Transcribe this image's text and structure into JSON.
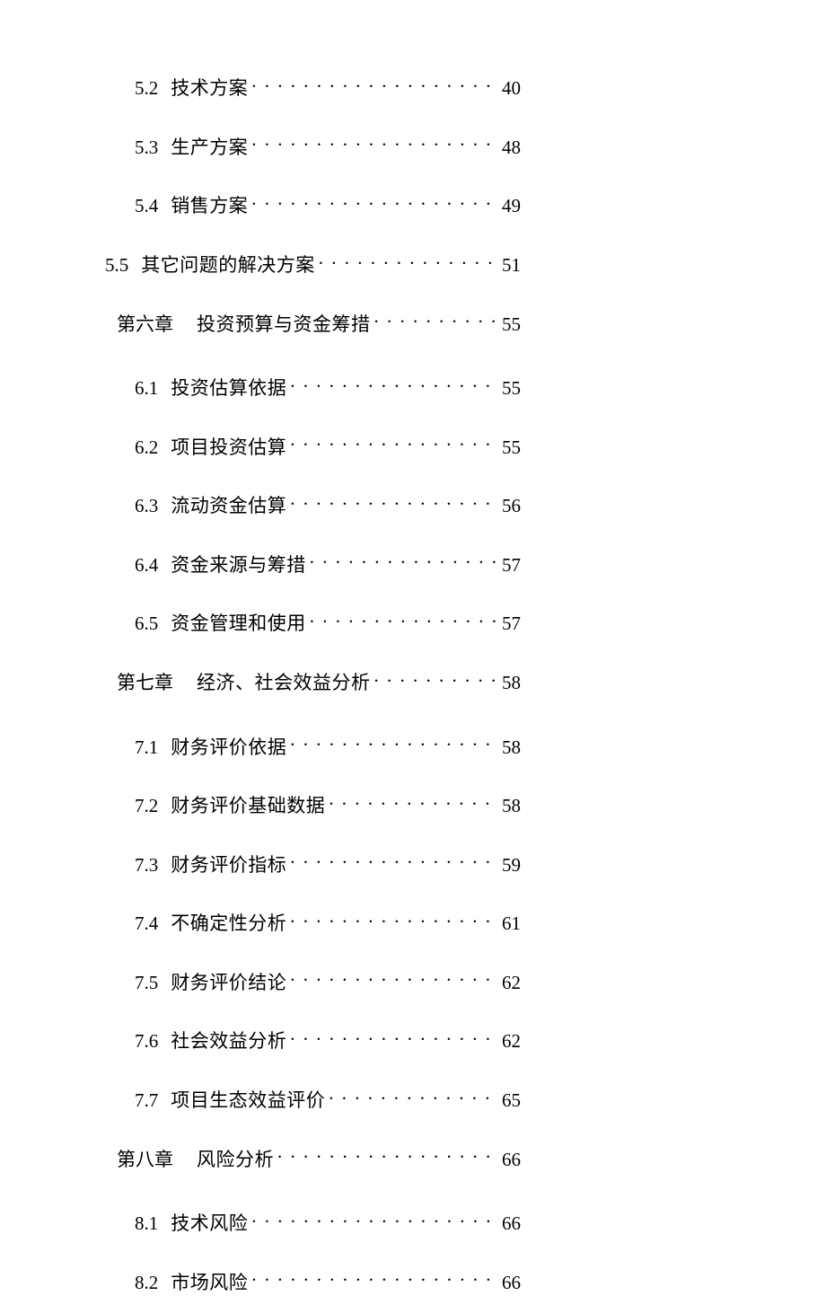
{
  "text_color": "#000000",
  "background_color": "#ffffff",
  "font_family": "SimSun",
  "font_size_pt": 16,
  "entries": [
    {
      "kind": "sub",
      "num": "5.2",
      "title": "技术方案",
      "page": "40"
    },
    {
      "kind": "sub",
      "num": "5.3",
      "title": "生产方案",
      "page": "48"
    },
    {
      "kind": "sub",
      "num": "5.4",
      "title": "销售方案",
      "page": "49"
    },
    {
      "kind": "sub-alt",
      "num": "5.5",
      "title": "其它问题的解决方案",
      "page": "51"
    },
    {
      "kind": "chapter",
      "chapter_label": "第六章",
      "title": "投资预算与资金筹措",
      "page": "55"
    },
    {
      "kind": "sub",
      "num": "6.1",
      "title": "投资估算依据",
      "page": "55"
    },
    {
      "kind": "sub",
      "num": "6.2",
      "title": "项目投资估算",
      "page": "55"
    },
    {
      "kind": "sub",
      "num": "6.3",
      "title": "流动资金估算",
      "page": "56"
    },
    {
      "kind": "sub",
      "num": "6.4",
      "title": "资金来源与筹措",
      "page": "57"
    },
    {
      "kind": "sub",
      "num": "6.5",
      "title": "资金管理和使用",
      "page": "57"
    },
    {
      "kind": "chapter",
      "chapter_label": "第七章",
      "title": "经济、社会效益分析",
      "page": "58"
    },
    {
      "kind": "sub",
      "num": "7.1",
      "title": "财务评价依据",
      "page": "58"
    },
    {
      "kind": "sub",
      "num": "7.2",
      "title": "财务评价基础数据",
      "page": "58"
    },
    {
      "kind": "sub",
      "num": "7.3",
      "title": "财务评价指标",
      "page": "59"
    },
    {
      "kind": "sub",
      "num": "7.4",
      "title": "不确定性分析",
      "page": "61"
    },
    {
      "kind": "sub",
      "num": "7.5",
      "title": "财务评价结论",
      "page": "62"
    },
    {
      "kind": "sub",
      "num": "7.6",
      "title": "社会效益分析",
      "page": "62"
    },
    {
      "kind": "sub",
      "num": "7.7",
      "title": "项目生态效益评价",
      "page": "65"
    },
    {
      "kind": "chapter",
      "chapter_label": "第八章",
      "title": "风险分析",
      "page": "66"
    },
    {
      "kind": "sub",
      "num": "8.1",
      "title": "技术风险",
      "page": "66"
    },
    {
      "kind": "sub",
      "num": "8.2",
      "title": "市场风险",
      "page": "66"
    }
  ]
}
